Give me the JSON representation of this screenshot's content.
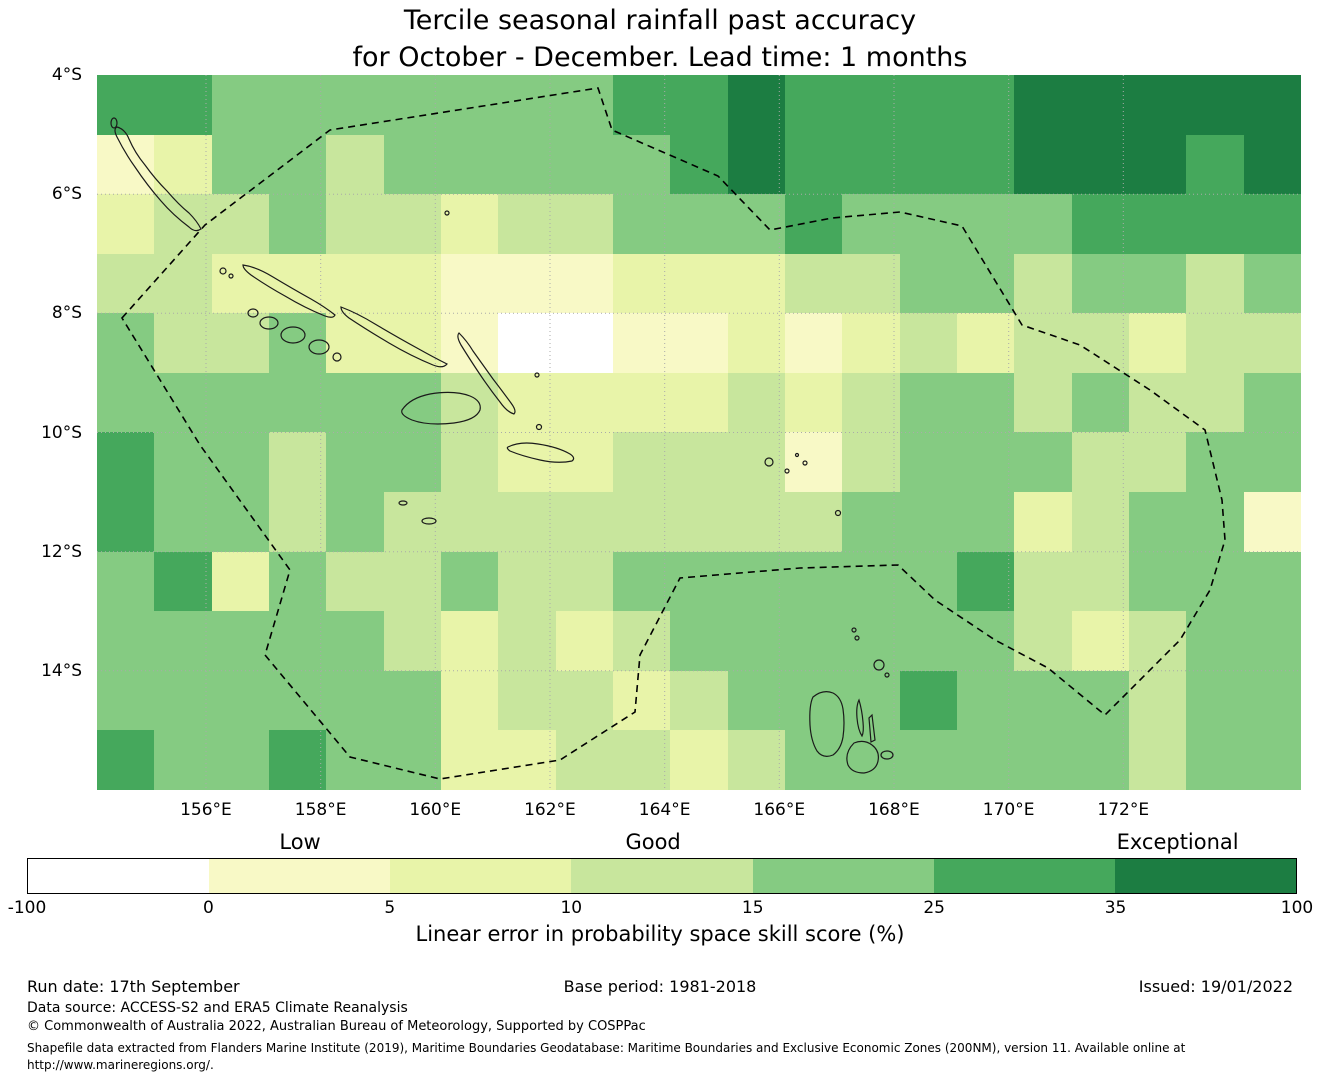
{
  "title": {
    "line1": "Tercile seasonal rainfall past accuracy",
    "line2": "for October - December. Lead time: 1 months"
  },
  "chart_data": {
    "type": "heatmap",
    "title": "Tercile seasonal rainfall past accuracy for October - December. Lead time: 1 months",
    "x_ticks": [
      "156°E",
      "158°E",
      "160°E",
      "162°E",
      "164°E",
      "166°E",
      "168°E",
      "170°E",
      "172°E"
    ],
    "y_ticks": [
      "4°S",
      "6°S",
      "8°S",
      "10°S",
      "12°S",
      "14°S"
    ],
    "grid_encoding": "each cell is an index into colorbar.colors; bin i covers skill scores between bin_edges[i] and bin_edges[i+1] (%)",
    "grid": [
      [
        5,
        5,
        4,
        4,
        4,
        4,
        4,
        4,
        4,
        5,
        5,
        6,
        5,
        5,
        5,
        5,
        6,
        6,
        6,
        6,
        6
      ],
      [
        1,
        2,
        4,
        4,
        3,
        4,
        4,
        4,
        4,
        4,
        5,
        6,
        5,
        5,
        5,
        5,
        6,
        6,
        6,
        5,
        6
      ],
      [
        2,
        3,
        3,
        4,
        3,
        3,
        2,
        3,
        3,
        4,
        4,
        4,
        5,
        4,
        4,
        4,
        4,
        5,
        5,
        5,
        5
      ],
      [
        3,
        3,
        2,
        2,
        2,
        2,
        1,
        1,
        1,
        2,
        2,
        2,
        3,
        3,
        4,
        4,
        3,
        4,
        4,
        3,
        4
      ],
      [
        4,
        3,
        3,
        4,
        2,
        2,
        1,
        0,
        0,
        1,
        1,
        2,
        1,
        2,
        3,
        2,
        3,
        3,
        2,
        3,
        3
      ],
      [
        4,
        4,
        4,
        4,
        4,
        4,
        3,
        2,
        2,
        2,
        2,
        3,
        2,
        3,
        4,
        4,
        3,
        4,
        3,
        3,
        4
      ],
      [
        5,
        4,
        4,
        3,
        4,
        4,
        3,
        2,
        2,
        3,
        3,
        3,
        1,
        3,
        4,
        4,
        4,
        3,
        3,
        4,
        4
      ],
      [
        5,
        4,
        4,
        3,
        4,
        3,
        3,
        3,
        3,
        3,
        3,
        3,
        3,
        4,
        4,
        4,
        2,
        3,
        4,
        4,
        1
      ],
      [
        4,
        5,
        2,
        4,
        3,
        3,
        4,
        3,
        3,
        4,
        4,
        4,
        4,
        4,
        4,
        5,
        3,
        3,
        4,
        4,
        4
      ],
      [
        4,
        4,
        4,
        4,
        4,
        3,
        2,
        3,
        2,
        3,
        4,
        4,
        4,
        4,
        4,
        4,
        3,
        2,
        3,
        4,
        4
      ],
      [
        4,
        4,
        4,
        4,
        4,
        4,
        2,
        3,
        3,
        2,
        3,
        4,
        4,
        4,
        5,
        4,
        4,
        4,
        3,
        4,
        4
      ],
      [
        5,
        4,
        4,
        5,
        4,
        4,
        2,
        2,
        3,
        3,
        2,
        3,
        4,
        4,
        4,
        4,
        4,
        4,
        3,
        4,
        4
      ]
    ],
    "colorbar": {
      "bin_edges": [
        -100,
        0,
        5,
        10,
        15,
        25,
        35,
        100
      ],
      "colors": [
        "#ffffff",
        "#f8f9c6",
        "#e8f4a9",
        "#c8e69d",
        "#85cb82",
        "#45a85c",
        "#1c7d42"
      ],
      "zone_labels": [
        "Low",
        "Good",
        "Exceptional"
      ],
      "caption": "Linear error in probability space skill score (%)"
    }
  },
  "footer": {
    "run_date": "Run date: 17th September",
    "base_period": "Base period: 1981-2018",
    "issued": "Issued: 19/01/2022",
    "data_source": "Data source: ACCESS-S2 and ERA5 Climate Reanalysis",
    "copyright": "© Commonwealth of Australia 2022, Australian Bureau of Meteorology, Supported by COSPPac",
    "attribution_line1": "Shapefile data extracted from Flanders Marine Institute (2019), Maritime Boundaries Geodatabase: Maritime Boundaries and Exclusive Economic Zones (200NM), version 11. Available online at",
    "attribution_line2": "http://www.marineregions.org/."
  }
}
